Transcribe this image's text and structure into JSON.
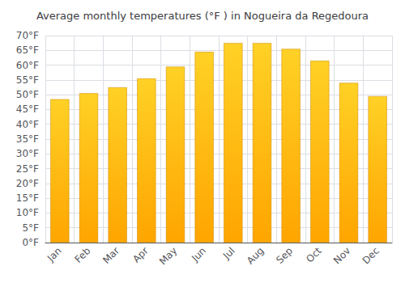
{
  "chart_data": {
    "type": "bar",
    "title": "Average monthly temperatures (°F ) in Nogueira da Regedoura",
    "categories": [
      "Jan",
      "Feb",
      "Mar",
      "Apr",
      "May",
      "Jun",
      "Jul",
      "Aug",
      "Sep",
      "Oct",
      "Nov",
      "Dec"
    ],
    "values": [
      48.5,
      50.5,
      52.5,
      55.5,
      59.5,
      64.5,
      67.5,
      67.5,
      65.5,
      61.5,
      54.0,
      49.5
    ],
    "color": "#FFA500",
    "ylim": [
      0,
      70
    ],
    "yticks": [
      {
        "value": 0,
        "label": "0°F"
      },
      {
        "value": 5,
        "label": "5°F"
      },
      {
        "value": 10,
        "label": "10°F"
      },
      {
        "value": 15,
        "label": "15°F"
      },
      {
        "value": 20,
        "label": "20°F"
      },
      {
        "value": 25,
        "label": "25°F"
      },
      {
        "value": 30,
        "label": "30°F"
      },
      {
        "value": 35,
        "label": "35°F"
      },
      {
        "value": 40,
        "label": "40°F"
      },
      {
        "value": 45,
        "label": "45°F"
      },
      {
        "value": 50,
        "label": "50°F"
      },
      {
        "value": 55,
        "label": "55°F"
      },
      {
        "value": 60,
        "label": "60°F"
      },
      {
        "value": 65,
        "label": "65°F"
      },
      {
        "value": 70,
        "label": "70°F"
      }
    ],
    "grid": true
  }
}
